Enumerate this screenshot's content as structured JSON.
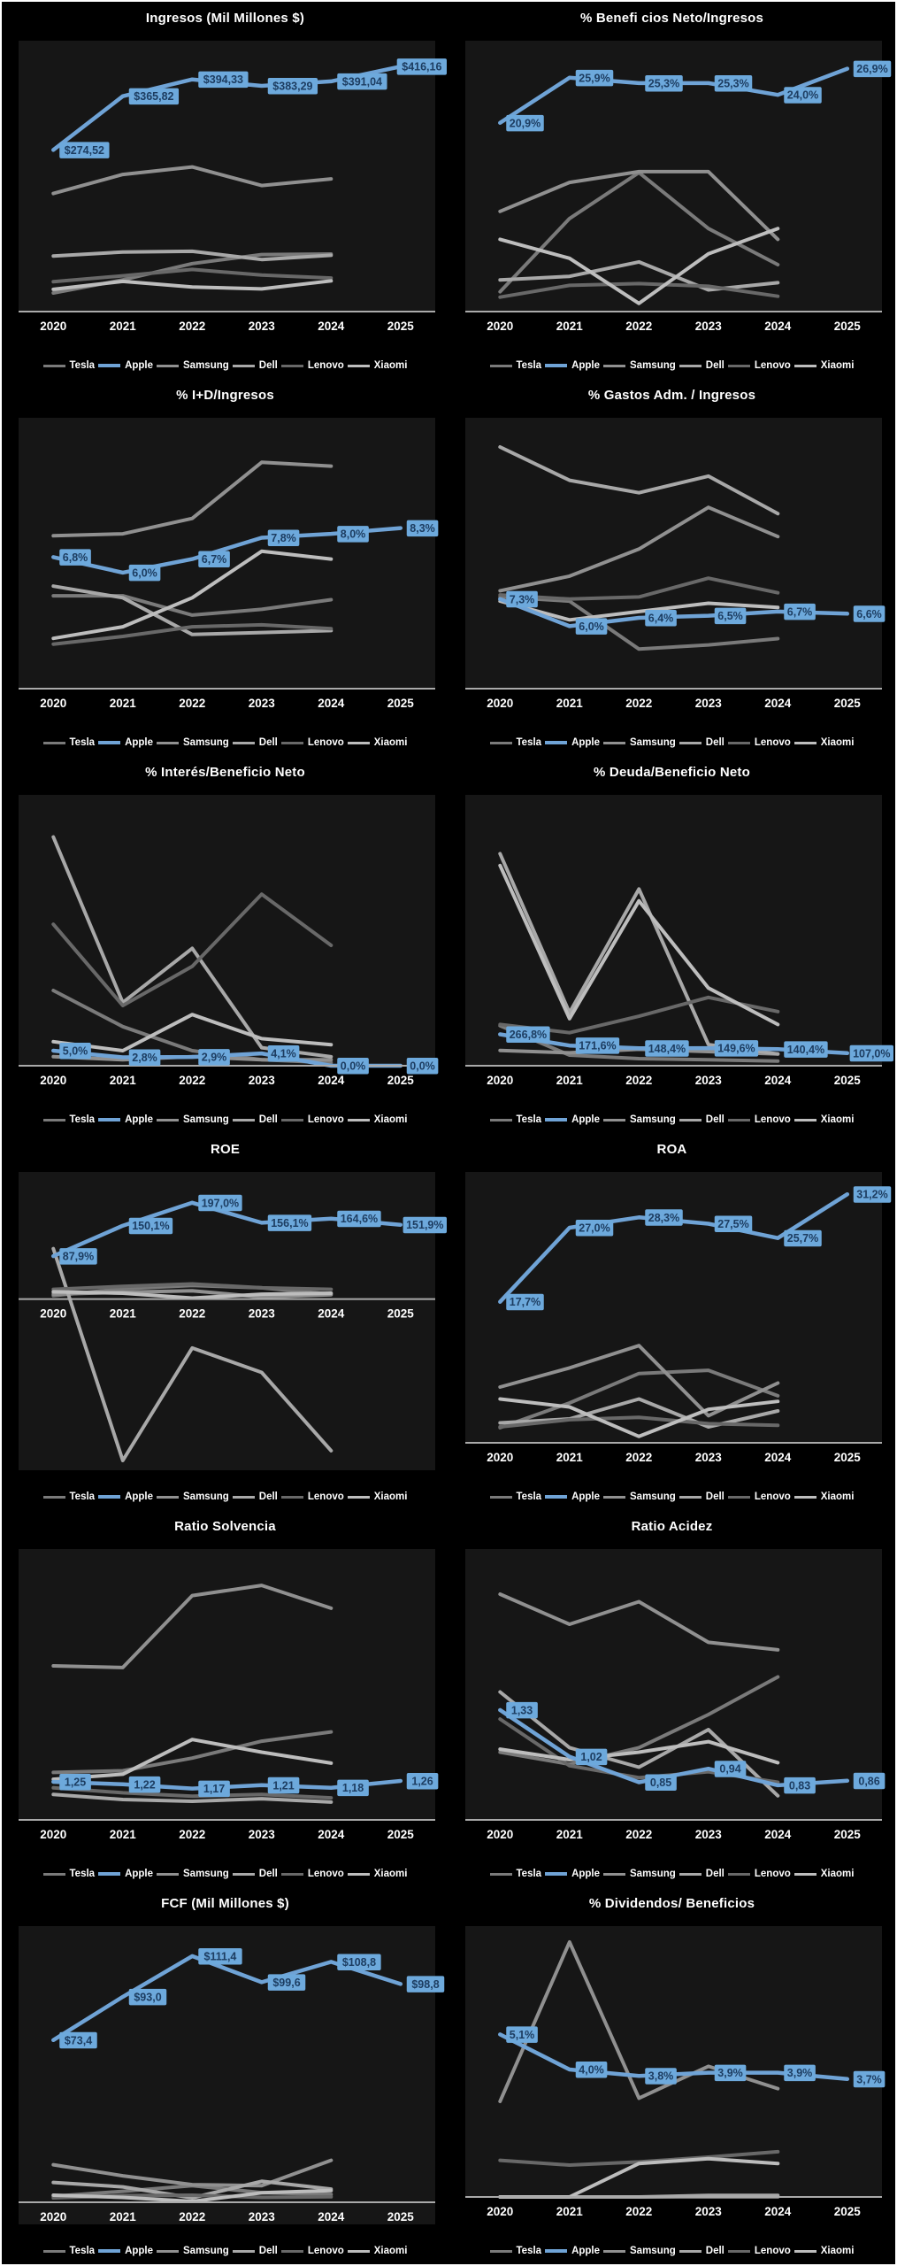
{
  "ui": {
    "background": "#000000",
    "frame": "#ffffff",
    "plot_bg": "#161616",
    "axis_color": "#aaaaaa",
    "text_color": "#ffffff",
    "label_bg": "#6da9dc",
    "label_text": "#1d3d61",
    "highlight_series": "Apple",
    "series_colors": {
      "Tesla": "#7a7a7a",
      "Apple": "#6fa3d6",
      "Samsung": "#909090",
      "Dell": "#a8a8a8",
      "Lenovo": "#686868",
      "Xiaomi": "#bdbdbd"
    }
  },
  "categories": [
    "2020",
    "2021",
    "2022",
    "2023",
    "2024",
    "2025"
  ],
  "chart_data": [
    {
      "type": "line",
      "title": "Ingresos (Mil Millones $)",
      "ylim": [
        0,
        460
      ],
      "categories": [
        "2020",
        "2021",
        "2022",
        "2023",
        "2024",
        "2025"
      ],
      "series": [
        {
          "name": "Tesla",
          "values": [
            31.5,
            53.8,
            81.5,
            96.8,
            97.7
          ]
        },
        {
          "name": "Apple",
          "highlighted": true,
          "values": [
            274.52,
            365.82,
            394.33,
            383.29,
            391.04,
            416.16
          ],
          "labels": [
            "$274,52",
            "$365,82",
            "$394,33",
            "$383,29",
            "$391,04",
            "$416,16"
          ]
        },
        {
          "name": "Samsung",
          "values": [
            200.6,
            232.8,
            245.7,
            214.1,
            225.3
          ]
        },
        {
          "name": "Dell",
          "values": [
            94.2,
            101.2,
            102.3,
            88.4,
            95.6
          ]
        },
        {
          "name": "Lenovo",
          "values": [
            50.7,
            60.7,
            71.6,
            61.9,
            56.9
          ]
        },
        {
          "name": "Xiaomi",
          "values": [
            37.8,
            51.2,
            41.7,
            38.5,
            52.1
          ]
        }
      ]
    },
    {
      "type": "line",
      "title": "% Benefi cios Neto/Ingresos",
      "ylim": [
        0,
        30
      ],
      "categories": [
        "2020",
        "2021",
        "2022",
        "2023",
        "2024",
        "2025"
      ],
      "series": [
        {
          "name": "Tesla",
          "values": [
            2.2,
            10.3,
            15.4,
            9.2,
            5.2
          ]
        },
        {
          "name": "Apple",
          "highlighted": true,
          "values": [
            20.9,
            25.9,
            25.3,
            25.3,
            24.0,
            26.9
          ],
          "labels": [
            "20,9%",
            "25,9%",
            "25,3%",
            "25,3%",
            "24,0%",
            "26,9%"
          ]
        },
        {
          "name": "Samsung",
          "values": [
            11.1,
            14.3,
            15.5,
            15.5,
            8.0
          ]
        },
        {
          "name": "Dell",
          "values": [
            3.5,
            3.9,
            5.5,
            2.4,
            3.2
          ]
        },
        {
          "name": "Lenovo",
          "values": [
            1.6,
            2.9,
            3.1,
            2.8,
            1.7
          ]
        },
        {
          "name": "Xiaomi",
          "values": [
            8.0,
            5.9,
            0.9,
            6.4,
            9.2
          ]
        }
      ]
    },
    {
      "type": "line",
      "title": "% I+D/Ingresos",
      "ylim": [
        0,
        14
      ],
      "categories": [
        "2020",
        "2021",
        "2022",
        "2023",
        "2024",
        "2025"
      ],
      "series": [
        {
          "name": "Tesla",
          "values": [
            4.8,
            4.8,
            3.8,
            4.1,
            4.6
          ]
        },
        {
          "name": "Apple",
          "highlighted": true,
          "values": [
            6.8,
            6.0,
            6.7,
            7.8,
            8.0,
            8.3
          ],
          "labels": [
            "6,8%",
            "6,0%",
            "6,7%",
            "7,8%",
            "8,0%",
            "8,3%"
          ]
        },
        {
          "name": "Samsung",
          "values": [
            7.9,
            8.0,
            8.8,
            11.7,
            11.5
          ]
        },
        {
          "name": "Dell",
          "values": [
            5.3,
            4.7,
            2.8,
            2.9,
            3.0
          ]
        },
        {
          "name": "Lenovo",
          "values": [
            2.3,
            2.7,
            3.2,
            3.3,
            3.1
          ]
        },
        {
          "name": "Xiaomi",
          "values": [
            2.6,
            3.2,
            4.7,
            7.1,
            6.7
          ]
        }
      ]
    },
    {
      "type": "line",
      "title": "% Gastos Adm. / Ingresos",
      "ylim": [
        3,
        16
      ],
      "categories": [
        "2020",
        "2021",
        "2022",
        "2023",
        "2024",
        "2025"
      ],
      "series": [
        {
          "name": "Tesla",
          "values": [
            7.4,
            7.2,
            4.9,
            5.1,
            5.4
          ]
        },
        {
          "name": "Apple",
          "highlighted": true,
          "values": [
            7.3,
            6.0,
            6.4,
            6.5,
            6.7,
            6.6
          ],
          "labels": [
            "7,3%",
            "6,0%",
            "6,4%",
            "6,5%",
            "6,7%",
            "6,6%"
          ]
        },
        {
          "name": "Samsung",
          "values": [
            7.7,
            8.4,
            9.7,
            11.7,
            10.3
          ]
        },
        {
          "name": "Dell",
          "values": [
            14.6,
            13.0,
            12.4,
            13.2,
            11.4
          ]
        },
        {
          "name": "Lenovo",
          "values": [
            7.5,
            7.3,
            7.4,
            8.3,
            7.6
          ]
        },
        {
          "name": "Xiaomi",
          "values": [
            7.2,
            6.3,
            6.7,
            7.1,
            6.9
          ]
        }
      ]
    },
    {
      "type": "line",
      "title": "% Interés/Beneficio Neto",
      "ylim": [
        0,
        90
      ],
      "categories": [
        "2020",
        "2021",
        "2022",
        "2023",
        "2024",
        "2025"
      ],
      "series": [
        {
          "name": "Tesla",
          "values": [
            25,
            13,
            5,
            2,
            1
          ]
        },
        {
          "name": "Apple",
          "highlighted": true,
          "values": [
            5.0,
            2.8,
            2.9,
            4.1,
            0.0,
            0.0
          ],
          "labels": [
            "5,0%",
            "2,8%",
            "2,9%",
            "4,1%",
            "0,0%",
            "0,0%"
          ]
        },
        {
          "name": "Samsung",
          "values": [
            3,
            2,
            3,
            2,
            2
          ]
        },
        {
          "name": "Dell",
          "values": [
            76,
            21,
            39,
            6,
            3
          ]
        },
        {
          "name": "Lenovo",
          "values": [
            47,
            20,
            33,
            57,
            40
          ]
        },
        {
          "name": "Xiaomi",
          "values": [
            8,
            5,
            17,
            9,
            7
          ]
        }
      ]
    },
    {
      "type": "line",
      "title": "% Deuda/Beneficio Neto",
      "ylim": [
        0,
        2300
      ],
      "categories": [
        "2020",
        "2021",
        "2022",
        "2023",
        "2024",
        "2025"
      ],
      "series": [
        {
          "name": "Tesla",
          "values": [
            340,
            90,
            60,
            50,
            40
          ]
        },
        {
          "name": "Apple",
          "highlighted": true,
          "values": [
            266.8,
            171.6,
            148.4,
            149.6,
            140.4,
            107.0
          ],
          "labels": [
            "266,8%",
            "171,6%",
            "148,4%",
            "149,6%",
            "140,4%",
            "107,0%"
          ]
        },
        {
          "name": "Samsung",
          "values": [
            130,
            110,
            140,
            120,
            100
          ]
        },
        {
          "name": "Dell",
          "values": [
            1800,
            450,
            1500,
            180,
            100
          ]
        },
        {
          "name": "Lenovo",
          "values": [
            350,
            280,
            420,
            580,
            460
          ]
        },
        {
          "name": "Xiaomi",
          "values": [
            1700,
            400,
            1400,
            660,
            350
          ]
        }
      ]
    },
    {
      "type": "line",
      "title": "ROE",
      "ylim": [
        -350,
        260
      ],
      "categories": [
        "2020",
        "2021",
        "2022",
        "2023",
        "2024",
        "2025"
      ],
      "series": [
        {
          "name": "Tesla",
          "values": [
            7,
            21,
            28,
            23,
            10
          ]
        },
        {
          "name": "Apple",
          "highlighted": true,
          "values": [
            87.9,
            150.1,
            197.0,
            156.1,
            164.6,
            151.9
          ],
          "labels": [
            "87,9%",
            "150,1%",
            "197,0%",
            "156,1%",
            "164,6%",
            "151,9%"
          ]
        },
        {
          "name": "Samsung",
          "values": [
            10,
            14,
            17,
            4,
            9
          ]
        },
        {
          "name": "Dell",
          "values": [
            103,
            -330,
            -100,
            -150,
            -310
          ]
        },
        {
          "name": "Lenovo",
          "values": [
            20,
            26,
            31,
            23,
            20
          ]
        },
        {
          "name": "Xiaomi",
          "values": [
            15,
            12,
            2,
            10,
            12
          ]
        }
      ]
    },
    {
      "type": "line",
      "title": "ROA",
      "ylim": [
        0,
        34
      ],
      "categories": [
        "2020",
        "2021",
        "2022",
        "2023",
        "2024",
        "2025"
      ],
      "series": [
        {
          "name": "Tesla",
          "values": [
            1.9,
            5.0,
            8.7,
            9.1,
            5.9
          ]
        },
        {
          "name": "Apple",
          "highlighted": true,
          "values": [
            17.7,
            27.0,
            28.3,
            27.5,
            25.7,
            31.2
          ],
          "labels": [
            "17,7%",
            "27,0%",
            "28,3%",
            "27,5%",
            "25,7%",
            "31,2%"
          ]
        },
        {
          "name": "Samsung",
          "values": [
            7.0,
            9.4,
            12.2,
            3.4,
            7.5
          ]
        },
        {
          "name": "Dell",
          "values": [
            2.5,
            3.0,
            5.5,
            2.0,
            4.0
          ]
        },
        {
          "name": "Lenovo",
          "values": [
            2.0,
            2.9,
            3.2,
            2.4,
            2.2
          ]
        },
        {
          "name": "Xiaomi",
          "values": [
            5.5,
            4.5,
            0.8,
            4.2,
            5.2
          ]
        }
      ]
    },
    {
      "type": "line",
      "title": "Ratio Solvencia",
      "ylim": [
        0.8,
        4.0
      ],
      "categories": [
        "2020",
        "2021",
        "2022",
        "2023",
        "2024",
        "2025"
      ],
      "series": [
        {
          "name": "Tesla",
          "values": [
            1.36,
            1.38,
            1.53,
            1.73,
            1.84
          ]
        },
        {
          "name": "Apple",
          "highlighted": true,
          "values": [
            1.25,
            1.22,
            1.17,
            1.21,
            1.18,
            1.26
          ],
          "labels": [
            "1,25",
            "1,22",
            "1,17",
            "1,21",
            "1,18",
            "1,26"
          ]
        },
        {
          "name": "Samsung",
          "values": [
            2.62,
            2.6,
            3.45,
            3.57,
            3.3
          ]
        },
        {
          "name": "Dell",
          "values": [
            1.1,
            1.04,
            1.02,
            1.05,
            1.01
          ]
        },
        {
          "name": "Lenovo",
          "values": [
            1.18,
            1.12,
            1.08,
            1.1,
            1.06
          ]
        },
        {
          "name": "Xiaomi",
          "values": [
            1.28,
            1.34,
            1.75,
            1.6,
            1.47
          ]
        }
      ]
    },
    {
      "type": "line",
      "title": "Ratio Acidez",
      "ylim": [
        0.6,
        2.4
      ],
      "categories": [
        "2020",
        "2021",
        "2022",
        "2023",
        "2024",
        "2025"
      ],
      "series": [
        {
          "name": "Tesla",
          "values": [
            1.05,
            0.97,
            1.08,
            1.3,
            1.55
          ]
        },
        {
          "name": "Apple",
          "highlighted": true,
          "values": [
            1.33,
            1.02,
            0.85,
            0.94,
            0.83,
            0.86
          ],
          "labels": [
            "1,33",
            "1,02",
            "0,85",
            "0,94",
            "0,83",
            "0,86"
          ]
        },
        {
          "name": "Samsung",
          "values": [
            2.1,
            1.9,
            2.05,
            1.78,
            1.73
          ]
        },
        {
          "name": "Dell",
          "values": [
            1.45,
            1.08,
            0.95,
            1.2,
            0.76
          ]
        },
        {
          "name": "Lenovo",
          "values": [
            1.27,
            0.96,
            0.88,
            0.92,
            0.85
          ]
        },
        {
          "name": "Xiaomi",
          "values": [
            1.07,
            1.0,
            1.05,
            1.12,
            0.98
          ]
        }
      ]
    },
    {
      "type": "line",
      "title": "FCF (Mil Millones $)",
      "ylim": [
        -10,
        125
      ],
      "categories": [
        "2020",
        "2021",
        "2022",
        "2023",
        "2024",
        "2025"
      ],
      "series": [
        {
          "name": "Tesla",
          "values": [
            2.7,
            5.0,
            7.5,
            4.4,
            3.6
          ]
        },
        {
          "name": "Apple",
          "highlighted": true,
          "values": [
            73.4,
            93.0,
            111.4,
            99.6,
            108.8,
            98.8
          ],
          "labels": [
            "$73,4",
            "$93,0",
            "$111,4",
            "$99,6",
            "$108,8",
            "$98,8"
          ]
        },
        {
          "name": "Samsung",
          "values": [
            17,
            12,
            8,
            7.5,
            19
          ]
        },
        {
          "name": "Dell",
          "values": [
            9,
            7,
            2,
            9.5,
            6
          ]
        },
        {
          "name": "Lenovo",
          "values": [
            2,
            3,
            3.2,
            2.2,
            2.5
          ]
        },
        {
          "name": "Xiaomi",
          "values": [
            3.2,
            2.2,
            0.4,
            4.3,
            5.3
          ]
        }
      ]
    },
    {
      "type": "line",
      "title": "% Dividendos/ Beneficios",
      "ylim": [
        0,
        8.5
      ],
      "categories": [
        "2020",
        "2021",
        "2022",
        "2023",
        "2024",
        "2025"
      ],
      "series": [
        {
          "name": "Tesla",
          "values": [
            0,
            0,
            0,
            0,
            0
          ]
        },
        {
          "name": "Apple",
          "highlighted": true,
          "values": [
            5.1,
            4.0,
            3.8,
            3.9,
            3.9,
            3.7
          ],
          "labels": [
            "5,1%",
            "4,0%",
            "3,8%",
            "3,9%",
            "3,9%",
            "3,7%"
          ]
        },
        {
          "name": "Samsung",
          "values": [
            3.0,
            8.0,
            3.1,
            4.1,
            3.4
          ]
        },
        {
          "name": "Dell",
          "values": [
            0,
            0,
            0,
            0.05,
            0.05
          ]
        },
        {
          "name": "Lenovo",
          "values": [
            1.15,
            1.0,
            1.1,
            1.25,
            1.42
          ]
        },
        {
          "name": "Xiaomi",
          "values": [
            0,
            0,
            1.05,
            1.2,
            1.05
          ]
        }
      ]
    }
  ]
}
